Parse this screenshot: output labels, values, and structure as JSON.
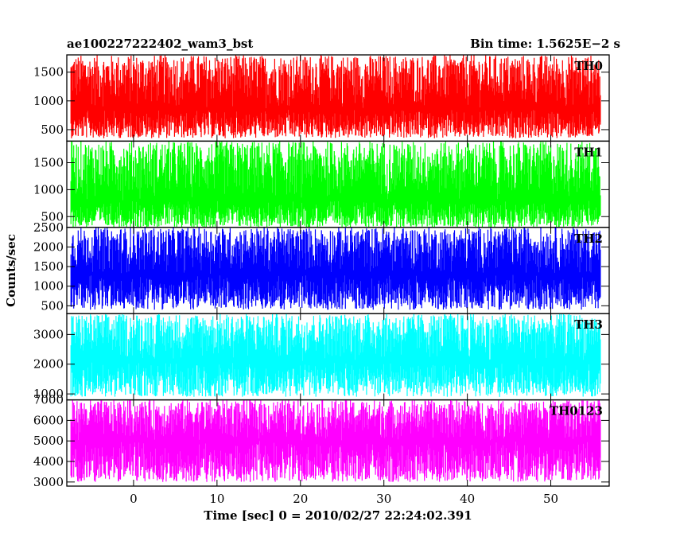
{
  "chart_data": {
    "type": "line",
    "title": "ae100227222402_wam3_bst",
    "subtitle": "Bin time: 1.5625E−2 s",
    "xlabel": "Time [sec] 0 = 2010/02/27 22:24:02.391",
    "ylabel": "Counts/sec",
    "xlim": [
      -8,
      57
    ],
    "x_ticks": [
      0,
      10,
      20,
      30,
      40,
      50
    ],
    "x_range": [
      -7.5,
      56
    ],
    "panels": [
      {
        "name": "TH0",
        "color": "#ff0000",
        "ylim": [
          300,
          1800
        ],
        "y_ticks": [
          500,
          1000,
          1500
        ],
        "mean": 850,
        "min": 350,
        "max": 1800
      },
      {
        "name": "TH1",
        "color": "#00ff00",
        "ylim": [
          300,
          1900
        ],
        "y_ticks": [
          500,
          1000,
          1500
        ],
        "mean": 800,
        "min": 300,
        "max": 1900
      },
      {
        "name": "TH2",
        "color": "#0000ff",
        "ylim": [
          300,
          2500
        ],
        "y_ticks": [
          500,
          1000,
          1500,
          2000,
          2500
        ],
        "mean": 1300,
        "min": 400,
        "max": 2500
      },
      {
        "name": "TH3",
        "color": "#00ffff",
        "ylim": [
          800,
          3700
        ],
        "y_ticks": [
          1000,
          2000,
          3000
        ],
        "mean": 2100,
        "min": 900,
        "max": 3700
      },
      {
        "name": "TH0123",
        "color": "#ff00ff",
        "ylim": [
          2800,
          7000
        ],
        "y_ticks": [
          3000,
          4000,
          5000,
          6000,
          7000
        ],
        "mean": 5000,
        "min": 3000,
        "max": 7000
      }
    ]
  }
}
